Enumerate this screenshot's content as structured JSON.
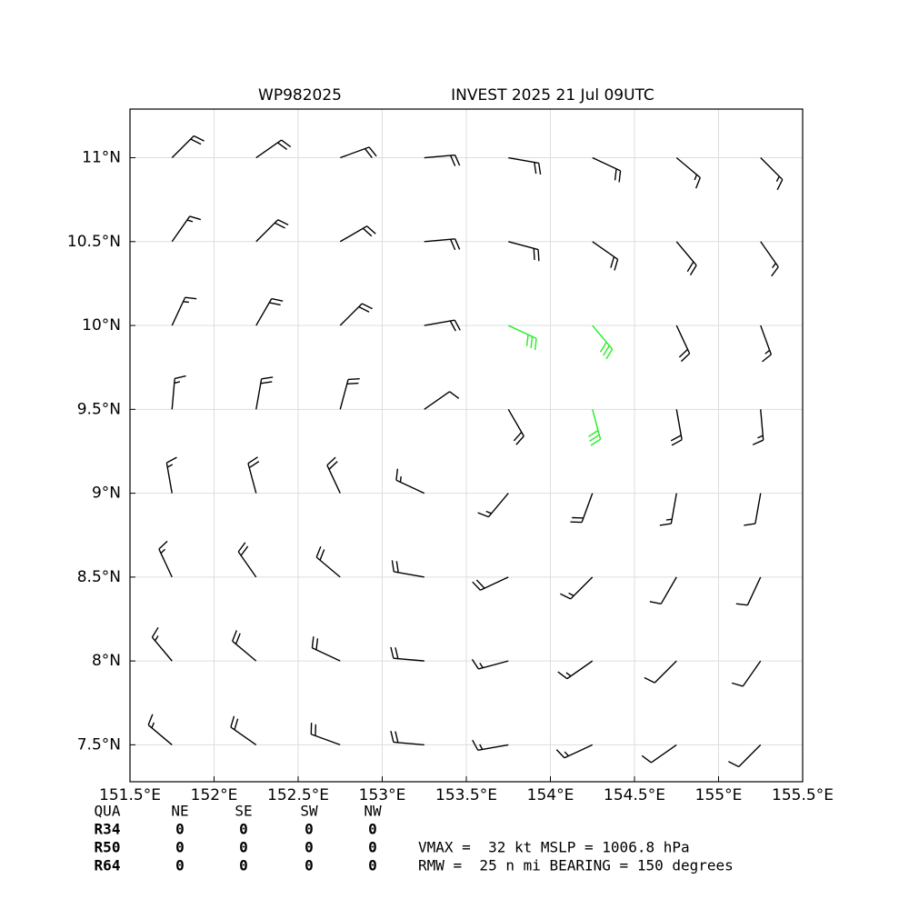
{
  "chart_data": {
    "type": "barbs",
    "title_left": "WP982025",
    "title_right": "INVEST 2025 21 Jul 09UTC",
    "xlim": [
      151.5,
      155.5
    ],
    "ylim": [
      7.28,
      11.29
    ],
    "xticks": [
      {
        "value": 151.5,
        "label": "151.5°E"
      },
      {
        "value": 152,
        "label": "152°E"
      },
      {
        "value": 152.5,
        "label": "152.5°E"
      },
      {
        "value": 153,
        "label": "153°E"
      },
      {
        "value": 153.5,
        "label": "153.5°E"
      },
      {
        "value": 154,
        "label": "154°E"
      },
      {
        "value": 154.5,
        "label": "154.5°E"
      },
      {
        "value": 155,
        "label": "155°E"
      },
      {
        "value": 155.5,
        "label": "155.5°E"
      }
    ],
    "yticks": [
      {
        "value": 7.5,
        "label": "7.5°N"
      },
      {
        "value": 8,
        "label": "8°N"
      },
      {
        "value": 8.5,
        "label": "8.5°N"
      },
      {
        "value": 9,
        "label": "9°N"
      },
      {
        "value": 9.5,
        "label": "9.5°N"
      },
      {
        "value": 10,
        "label": "10°N"
      },
      {
        "value": 10.5,
        "label": "10.5°N"
      },
      {
        "value": 11,
        "label": "11°N"
      }
    ],
    "grid": true,
    "lons": [
      151.75,
      152.25,
      152.75,
      153.25,
      153.75,
      154.25,
      154.75,
      155.25
    ],
    "lats": [
      11.0,
      10.5,
      10.0,
      9.5,
      9.0,
      8.5,
      8.0,
      7.5
    ],
    "speed": [
      [
        20,
        20,
        20,
        20,
        20,
        20,
        15,
        15
      ],
      [
        15,
        20,
        20,
        20,
        20,
        20,
        20,
        15
      ],
      [
        15,
        20,
        20,
        20,
        30,
        30,
        20,
        15
      ],
      [
        15,
        20,
        20,
        10,
        20,
        30,
        20,
        15
      ],
      [
        15,
        20,
        20,
        15,
        15,
        20,
        15,
        10
      ],
      [
        15,
        20,
        20,
        20,
        20,
        15,
        10,
        10
      ],
      [
        15,
        20,
        20,
        20,
        15,
        15,
        10,
        10
      ],
      [
        15,
        20,
        20,
        20,
        15,
        15,
        10,
        10
      ]
    ],
    "direction": [
      [
        45,
        55,
        70,
        85,
        100,
        115,
        130,
        135
      ],
      [
        35,
        45,
        60,
        85,
        105,
        125,
        140,
        145
      ],
      [
        25,
        30,
        45,
        80,
        115,
        140,
        155,
        160
      ],
      [
        5,
        10,
        15,
        55,
        150,
        165,
        170,
        175
      ],
      [
        350,
        345,
        335,
        295,
        220,
        200,
        190,
        190
      ],
      [
        335,
        325,
        310,
        280,
        245,
        225,
        210,
        205
      ],
      [
        320,
        310,
        295,
        275,
        255,
        235,
        225,
        215
      ],
      [
        310,
        305,
        290,
        275,
        260,
        245,
        235,
        225
      ]
    ],
    "colors": [
      [
        "#000000",
        "#000000",
        "#000000",
        "#000000",
        "#000000",
        "#000000",
        "#000000",
        "#000000"
      ],
      [
        "#000000",
        "#000000",
        "#000000",
        "#000000",
        "#000000",
        "#000000",
        "#000000",
        "#000000"
      ],
      [
        "#000000",
        "#000000",
        "#000000",
        "#000000",
        "#22ee22",
        "#22ee22",
        "#000000",
        "#000000"
      ],
      [
        "#000000",
        "#000000",
        "#000000",
        "#000000",
        "#000000",
        "#22ee22",
        "#000000",
        "#000000"
      ],
      [
        "#000000",
        "#000000",
        "#000000",
        "#000000",
        "#000000",
        "#000000",
        "#000000",
        "#000000"
      ],
      [
        "#000000",
        "#000000",
        "#000000",
        "#000000",
        "#000000",
        "#000000",
        "#000000",
        "#000000"
      ],
      [
        "#000000",
        "#000000",
        "#000000",
        "#000000",
        "#000000",
        "#000000",
        "#000000",
        "#000000"
      ],
      [
        "#000000",
        "#000000",
        "#000000",
        "#000000",
        "#000000",
        "#000000",
        "#000000",
        "#000000"
      ]
    ]
  },
  "table": {
    "header": [
      "QUA",
      "NE",
      "SE",
      "SW",
      "NW"
    ],
    "rows": [
      [
        "R34",
        0,
        0,
        0,
        0
      ],
      [
        "R50",
        0,
        0,
        0,
        0
      ],
      [
        "R64",
        0,
        0,
        0,
        0
      ]
    ]
  },
  "info": [
    "VMAX =  32 kt MSLP = 1006.8 hPa",
    "RMW =  25 n mi BEARING = 150 degrees"
  ]
}
